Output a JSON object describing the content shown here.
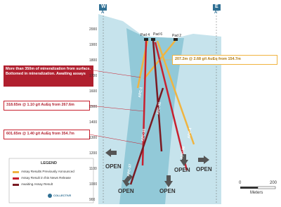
{
  "section": {
    "west_label": "W",
    "west_marker": "A",
    "east_label": "E",
    "east_marker": "A'"
  },
  "elevations": [
    2000,
    1900,
    1800,
    1700,
    1600,
    1500,
    1400,
    1300,
    1200,
    1100,
    1000,
    900
  ],
  "pads": [
    "Pad 4",
    "Pad 6",
    "Pad 2"
  ],
  "drill_holes": [
    "APC-1",
    "APC-31",
    "APC-30",
    "APC-4",
    "APC-36",
    "APC-37"
  ],
  "callouts": [
    {
      "text": "More than 350m of mineralization from surface. Bottomed in mineralization. Awaiting assays"
    },
    {
      "text": "207.2m @ 2.68 g/t AuEq from 154.7m"
    },
    {
      "text": "318.65m @ 1.10 g/t AuEq from 267.6m"
    },
    {
      "text": "601.65m @ 1.40 g/t AuEq from 354.7m"
    }
  ],
  "open_labels": [
    "OPEN",
    "OPEN",
    "OPEN",
    "OPEN",
    "OPEN"
  ],
  "legend": {
    "title": "LEGEND",
    "items": [
      "Assay Results Previously Announced",
      "Assay Result in this News Release",
      "Awaiting Assay Result"
    ],
    "logo": "COLLECTIVE"
  },
  "scale": {
    "start": "0",
    "end": "200",
    "unit": "Meters"
  }
}
